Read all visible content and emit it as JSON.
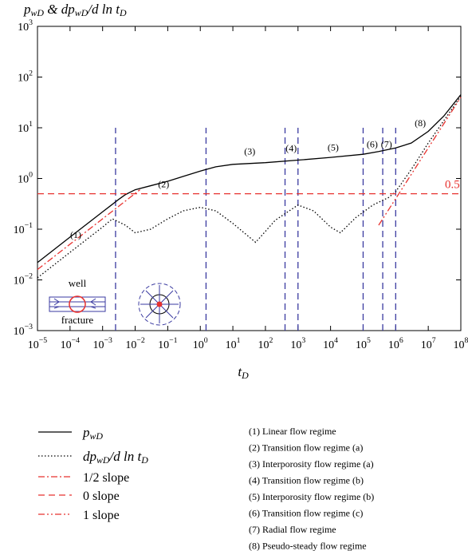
{
  "chart_data": {
    "type": "line",
    "title": "p_{wD} & dp_{wD}/d ln t_{D}",
    "xlabel": "t_{D}",
    "log_x": true,
    "log_y": true,
    "xlim": [
      1e-05,
      100000000
    ],
    "ylim": [
      0.001,
      1000
    ],
    "xticks": [
      {
        "value": 1e-05,
        "label": "10^{−5}"
      },
      {
        "value": 0.0001,
        "label": "10^{−4}"
      },
      {
        "value": 0.001,
        "label": "10^{−3}"
      },
      {
        "value": 0.01,
        "label": "10^{−2}"
      },
      {
        "value": 0.1,
        "label": "10^{−1}"
      },
      {
        "value": 1,
        "label": "10^{0}"
      },
      {
        "value": 10,
        "label": "10^{1}"
      },
      {
        "value": 100,
        "label": "10^{2}"
      },
      {
        "value": 1000,
        "label": "10^{3}"
      },
      {
        "value": 10000,
        "label": "10^{4}"
      },
      {
        "value": 100000,
        "label": "10^{5}"
      },
      {
        "value": 1000000,
        "label": "10^{6}"
      },
      {
        "value": 10000000,
        "label": "10^{7}"
      },
      {
        "value": 100000000,
        "label": "10^{8}"
      }
    ],
    "yticks": [
      {
        "value": 0.001,
        "label": "10^{−3}"
      },
      {
        "value": 0.01,
        "label": "10^{−2}"
      },
      {
        "value": 0.1,
        "label": "10^{−1}"
      },
      {
        "value": 1,
        "label": "10^{0}"
      },
      {
        "value": 10,
        "label": "10^{1}"
      },
      {
        "value": 100,
        "label": "10^{2}"
      },
      {
        "value": 1000,
        "label": "10^{3}"
      }
    ],
    "series": [
      {
        "name": "p_{wD}",
        "color": "#000000",
        "dash": "solid",
        "x": [
          1e-05,
          0.0001,
          0.001,
          0.002,
          0.003,
          0.005,
          0.01,
          0.03,
          0.1,
          0.3,
          1,
          3,
          10,
          100,
          1000,
          10000,
          100000,
          300000,
          1000000,
          3000000,
          10000000,
          30000000,
          100000000
        ],
        "y": [
          0.022,
          0.07,
          0.22,
          0.31,
          0.38,
          0.48,
          0.6,
          0.72,
          0.88,
          1.1,
          1.4,
          1.7,
          1.9,
          2.05,
          2.3,
          2.6,
          3.0,
          3.4,
          4.0,
          5.0,
          8.5,
          17,
          45
        ]
      },
      {
        "name": "dp_{wD}/d ln t_{D}",
        "color": "#000000",
        "dash": "dotted",
        "x": [
          1e-05,
          0.0001,
          0.001,
          0.002,
          0.005,
          0.01,
          0.03,
          0.1,
          0.3,
          1,
          3,
          10,
          50,
          200,
          1000,
          3000,
          10000,
          20000,
          60000,
          200000,
          600000,
          1000000,
          3000000,
          10000000,
          100000000
        ],
        "y": [
          0.011,
          0.035,
          0.11,
          0.16,
          0.12,
          0.085,
          0.1,
          0.16,
          0.23,
          0.27,
          0.23,
          0.13,
          0.055,
          0.15,
          0.3,
          0.23,
          0.11,
          0.085,
          0.17,
          0.3,
          0.42,
          0.55,
          1.5,
          5,
          42
        ]
      },
      {
        "name": "1/2 slope",
        "color": "#e8322f",
        "dash": "dashdot",
        "x": [
          1e-05,
          0.014
        ],
        "y": [
          0.016,
          0.6
        ]
      },
      {
        "name": "0 slope",
        "color": "#e8322f",
        "dash": "dashed",
        "x": [
          1e-05,
          100000000
        ],
        "y": [
          0.5,
          0.5
        ]
      },
      {
        "name": "1 slope",
        "color": "#e8322f",
        "dash": "dashdotdot",
        "x": [
          300000,
          100000000
        ],
        "y": [
          0.12,
          40
        ]
      }
    ],
    "regime_lines": {
      "color": "#3a3aa0",
      "x": [
        0.0025,
        1.5,
        400,
        1000,
        100000,
        400000,
        1000000
      ],
      "ylim": [
        0.001,
        10
      ]
    },
    "annotations": [
      {
        "text": "(1)",
        "x": 0.00015,
        "y": 0.075,
        "color": "#000000"
      },
      {
        "text": "(2)",
        "x": 0.075,
        "y": 0.75,
        "color": "#000000"
      },
      {
        "text": "(3)",
        "x": 33,
        "y": 3.3,
        "color": "#000000"
      },
      {
        "text": "(4)",
        "x": 620,
        "y": 3.8,
        "color": "#000000"
      },
      {
        "text": "(5)",
        "x": 12000,
        "y": 4.0,
        "color": "#000000"
      },
      {
        "text": "(6)",
        "x": 190000,
        "y": 4.6,
        "color": "#000000"
      },
      {
        "text": "(7)",
        "x": 520000,
        "y": 4.6,
        "color": "#000000"
      },
      {
        "text": "(8)",
        "x": 5700000,
        "y": 12,
        "color": "#000000"
      },
      {
        "text": "0.5",
        "x": 55000000,
        "y": 0.72,
        "color": "#e8322f"
      }
    ],
    "inset": {
      "well": "well",
      "fracture": "fracture"
    },
    "regimes": [
      "(1) Linear flow regime",
      "(2) Transition flow regime (a)",
      "(3) Interporosity flow regime (a)",
      "(4) Transition flow regime (b)",
      "(5) Interporosity flow regime (b)",
      "(6) Transition flow regime (c)",
      "(7) Radial flow regime",
      "(8) Pseudo-steady flow regime"
    ]
  }
}
